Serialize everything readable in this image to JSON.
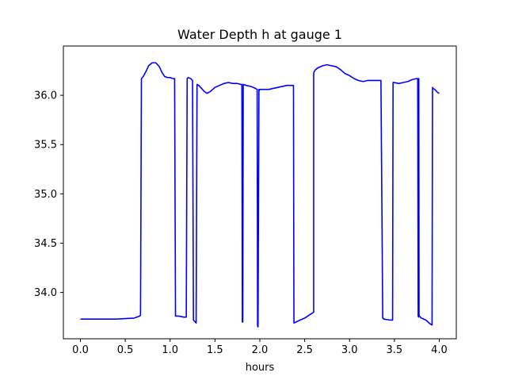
{
  "chart_data": {
    "type": "line",
    "title": "Water Depth h at gauge 1",
    "xlabel": "hours",
    "ylabel": "",
    "xlim": [
      -0.19,
      4.19
    ],
    "ylim": [
      33.53,
      36.5
    ],
    "xticks": [
      "0.0",
      "0.5",
      "1.0",
      "1.5",
      "2.0",
      "2.5",
      "3.0",
      "3.5",
      "4.0"
    ],
    "xtick_values": [
      0.0,
      0.5,
      1.0,
      1.5,
      2.0,
      2.5,
      3.0,
      3.5,
      4.0
    ],
    "yticks": [
      "34.0",
      "34.5",
      "35.0",
      "35.5",
      "36.0"
    ],
    "ytick_values": [
      34.0,
      34.5,
      35.0,
      35.5,
      36.0
    ],
    "grid": false,
    "colors": {
      "line": "#0000ff",
      "axes": "#000000",
      "background": "#ffffff"
    },
    "series": [
      {
        "x": [
          0.0,
          0.1,
          0.2,
          0.3,
          0.4,
          0.5,
          0.6,
          0.66,
          0.67,
          0.68,
          0.7,
          0.73,
          0.76,
          0.8,
          0.84,
          0.88,
          0.91,
          0.94,
          0.97,
          1.0,
          1.03,
          1.05,
          1.06,
          1.065,
          1.1,
          1.15,
          1.18,
          1.19,
          1.2,
          1.23,
          1.25,
          1.26,
          1.28,
          1.29,
          1.3,
          1.32,
          1.35,
          1.38,
          1.41,
          1.45,
          1.5,
          1.55,
          1.6,
          1.65,
          1.7,
          1.75,
          1.79,
          1.8,
          1.805,
          1.81,
          1.815,
          1.85,
          1.9,
          1.95,
          1.97,
          1.975,
          1.98,
          1.99,
          1.995,
          2.0,
          2.05,
          2.1,
          2.15,
          2.2,
          2.25,
          2.3,
          2.35,
          2.37,
          2.375,
          2.38,
          2.45,
          2.5,
          2.55,
          2.6,
          2.6,
          2.605,
          2.62,
          2.65,
          2.7,
          2.75,
          2.8,
          2.85,
          2.9,
          2.95,
          3.0,
          3.05,
          3.1,
          3.15,
          3.2,
          3.25,
          3.3,
          3.35,
          3.37,
          3.375,
          3.38,
          3.45,
          3.48,
          3.485,
          3.49,
          3.55,
          3.6,
          3.65,
          3.7,
          3.75,
          3.76,
          3.765,
          3.77,
          3.772,
          3.775,
          3.78,
          3.79,
          3.8,
          3.85,
          3.9,
          3.92,
          3.925,
          3.93,
          3.95,
          3.98,
          4.0
        ],
        "values": [
          33.73,
          33.73,
          33.73,
          33.73,
          33.73,
          33.735,
          33.74,
          33.76,
          33.77,
          36.17,
          36.19,
          36.24,
          36.3,
          36.33,
          36.33,
          36.29,
          36.23,
          36.19,
          36.18,
          36.18,
          36.17,
          36.17,
          33.76,
          33.76,
          33.76,
          33.75,
          33.75,
          36.17,
          36.18,
          36.17,
          36.15,
          33.72,
          33.7,
          33.69,
          36.11,
          36.1,
          36.07,
          36.04,
          36.02,
          36.04,
          36.08,
          36.1,
          36.12,
          36.13,
          36.12,
          36.12,
          36.11,
          36.11,
          33.7,
          33.7,
          36.11,
          36.1,
          36.09,
          36.07,
          36.06,
          33.66,
          33.65,
          36.06,
          36.05,
          36.06,
          36.06,
          36.06,
          36.07,
          36.08,
          36.09,
          36.1,
          36.1,
          36.1,
          36.1,
          33.69,
          33.72,
          33.74,
          33.77,
          33.8,
          36.22,
          36.24,
          36.26,
          36.28,
          36.3,
          36.31,
          36.3,
          36.29,
          36.26,
          36.22,
          36.2,
          36.17,
          36.15,
          36.14,
          36.15,
          36.15,
          36.15,
          36.15,
          33.74,
          33.74,
          33.73,
          33.72,
          33.72,
          36.13,
          36.13,
          36.12,
          36.13,
          36.14,
          36.16,
          36.17,
          36.17,
          33.76,
          33.75,
          36.17,
          33.76,
          33.76,
          33.75,
          33.74,
          33.72,
          33.68,
          33.67,
          36.08,
          36.07,
          36.06,
          36.03,
          36.02
        ]
      }
    ]
  }
}
